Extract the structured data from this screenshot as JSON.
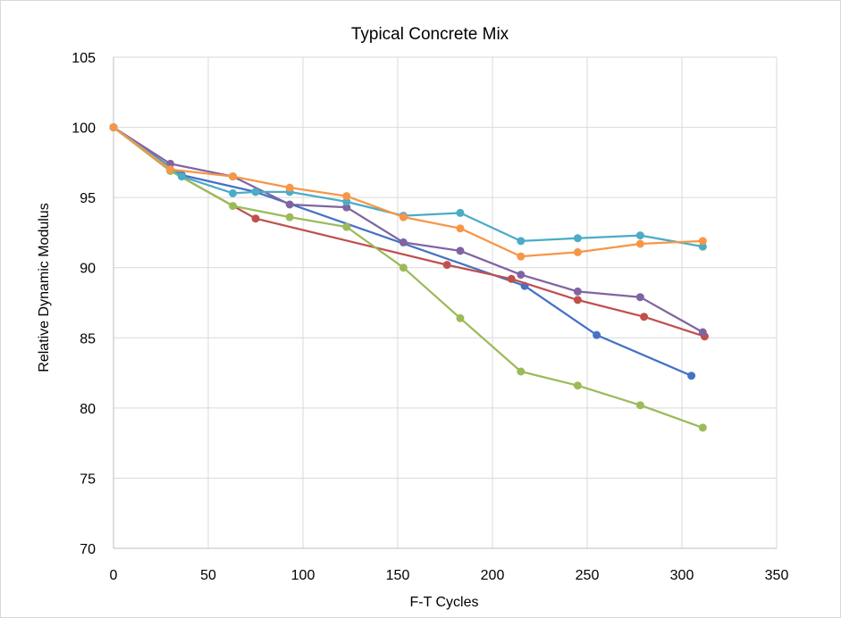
{
  "chart_data": {
    "type": "line",
    "title": "Typical Concrete Mix",
    "xlabel": "F-T Cycles",
    "ylabel": "Relative Dynamic Modulus",
    "xlim": [
      0,
      350
    ],
    "ylim": [
      70,
      105
    ],
    "xticks": [
      0,
      50,
      100,
      150,
      200,
      250,
      300,
      350
    ],
    "yticks": [
      70,
      75,
      80,
      85,
      90,
      95,
      100,
      105
    ],
    "grid": true,
    "legend": "none",
    "series": [
      {
        "color": "#4472C4",
        "x": [
          0,
          36,
          75,
          217,
          255,
          305
        ],
        "y": [
          100,
          96.6,
          95.4,
          88.7,
          85.2,
          82.3
        ]
      },
      {
        "color": "#C0504D",
        "x": [
          0,
          30,
          75,
          176,
          210,
          245,
          280,
          312
        ],
        "y": [
          100,
          96.9,
          93.5,
          90.2,
          89.2,
          87.7,
          86.5,
          85.1
        ]
      },
      {
        "color": "#9BBB59",
        "x": [
          0,
          30,
          63,
          93,
          123,
          153,
          183,
          215,
          245,
          278,
          311
        ],
        "y": [
          100,
          96.9,
          94.4,
          93.6,
          92.9,
          90.0,
          86.4,
          82.6,
          81.6,
          80.2,
          78.6
        ]
      },
      {
        "color": "#8064A2",
        "x": [
          0,
          30,
          63,
          93,
          123,
          153,
          183,
          215,
          245,
          278,
          311
        ],
        "y": [
          100,
          97.4,
          96.5,
          94.5,
          94.3,
          91.8,
          91.2,
          89.5,
          88.3,
          87.9,
          85.4
        ]
      },
      {
        "color": "#4BACC6",
        "x": [
          0,
          36,
          63,
          75,
          93,
          123,
          153,
          183,
          215,
          245,
          278,
          311
        ],
        "y": [
          100,
          96.5,
          95.3,
          95.4,
          95.4,
          94.7,
          93.7,
          93.9,
          91.9,
          92.1,
          92.3,
          91.5
        ]
      },
      {
        "color": "#F79646",
        "x": [
          0,
          30,
          63,
          93,
          123,
          153,
          183,
          215,
          245,
          278,
          311
        ],
        "y": [
          100,
          97.0,
          96.5,
          95.7,
          95.1,
          93.6,
          92.8,
          90.8,
          91.1,
          91.7,
          91.9
        ]
      }
    ]
  }
}
